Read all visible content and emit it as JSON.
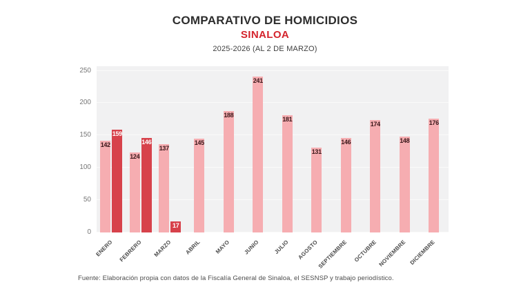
{
  "header": {
    "title": "COMPARATIVO DE HOMICIDIOS",
    "subtitle": "SINALOA",
    "period": "2025-2026 (AL 2 DE MARZO)"
  },
  "footer": {
    "source": "Fuente: Elaboración propia con datos de la Fiscalía General de Sinaloa, el SESNSP y trabajo periodístico."
  },
  "colors": {
    "accent_red": "#d4232c",
    "series_2025": "#f6adb1",
    "series_2026": "#d7424b",
    "label_on_light": "#3a181a",
    "label_on_dark": "#ffffff",
    "plot_bg": "#f1f1f2",
    "gridline": "#fafafa",
    "title_text": "#2d2d2d",
    "axis_text": "#767676"
  },
  "chart_data": {
    "type": "bar",
    "title": "COMPARATIVO DE HOMICIDIOS",
    "subtitle": "SINALOA",
    "period_note": "2025-2026 (AL 2 DE MARZO)",
    "categories": [
      "ENERO",
      "FEBRERO",
      "MARZO",
      "ABRIL",
      "MAYO",
      "JUNIO",
      "JULIO",
      "AGOSTO",
      "SEPTIEMBRE",
      "OCTUBRE",
      "NOVIEMBRE",
      "DICIEMBRE"
    ],
    "series": [
      {
        "name": "2025",
        "color": "#f6adb1",
        "values": [
          142,
          124,
          137,
          145,
          188,
          241,
          181,
          131,
          146,
          174,
          148,
          176
        ]
      },
      {
        "name": "2026",
        "color": "#d7424b",
        "values": [
          159,
          146,
          17,
          null,
          null,
          null,
          null,
          null,
          null,
          null,
          null,
          null
        ]
      }
    ],
    "xlabel": "",
    "ylabel": "",
    "yticks": [
      0,
      50,
      100,
      150,
      200,
      250
    ],
    "ylim": [
      0,
      257
    ],
    "grid": true,
    "legend": "none",
    "bar_value_labels": true
  }
}
